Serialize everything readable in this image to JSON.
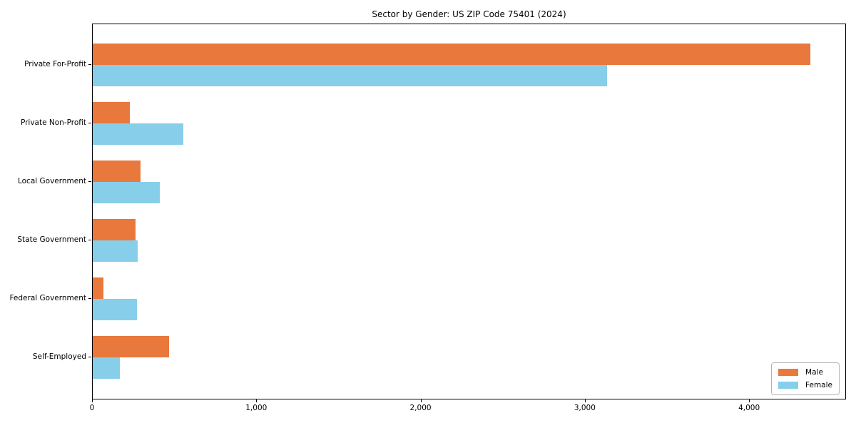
{
  "chart_data": {
    "type": "bar",
    "orientation": "horizontal",
    "title": "Sector by Gender: US ZIP Code 75401 (2024)",
    "categories": [
      "Private For-Profit",
      "Private Non-Profit",
      "Local Government",
      "State Government",
      "Federal Government",
      "Self-Employed"
    ],
    "series": [
      {
        "name": "Male",
        "color": "#e8783c",
        "values": [
          4370,
          225,
          290,
          260,
          65,
          465
        ]
      },
      {
        "name": "Female",
        "color": "#87ceeb",
        "values": [
          3130,
          550,
          410,
          275,
          270,
          165
        ]
      }
    ],
    "xlabel": "",
    "ylabel": "",
    "xlim": [
      0,
      4590
    ],
    "xticks": [
      0,
      1000,
      2000,
      3000,
      4000
    ],
    "xtick_labels": [
      "0",
      "1,000",
      "2,000",
      "3,000",
      "4,000"
    ],
    "legend_position": "lower right",
    "grid": false,
    "background_color": "#ffffff",
    "spine_color": "#000000"
  }
}
